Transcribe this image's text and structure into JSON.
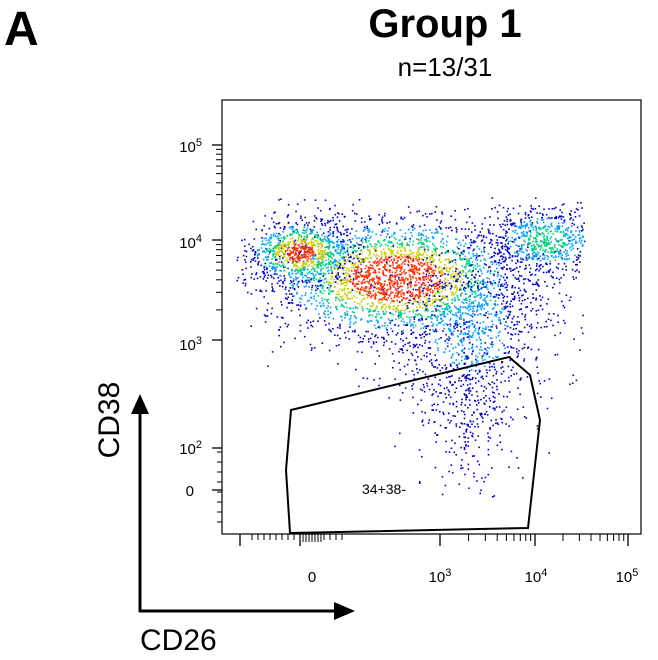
{
  "panel_label": "A",
  "chart_data": {
    "type": "scatter",
    "style": "flow-cytometry-density-dot-plot",
    "title": "Group 1",
    "subtitle": "n=13/31",
    "xlabel": "CD26",
    "ylabel": "CD38",
    "x_scale": "biexponential",
    "y_scale": "biexponential",
    "x_ticks": [
      {
        "base": "0",
        "exp": ""
      },
      {
        "base": "10",
        "exp": "3"
      },
      {
        "base": "10",
        "exp": "4"
      },
      {
        "base": "10",
        "exp": "5"
      }
    ],
    "y_ticks": [
      {
        "base": "10",
        "exp": "5"
      },
      {
        "base": "10",
        "exp": "4"
      },
      {
        "base": "10",
        "exp": "3"
      },
      {
        "base": "10",
        "exp": "2"
      },
      {
        "base": "0",
        "exp": ""
      }
    ],
    "density_colors": [
      "#0000cc",
      "#00a0ff",
      "#00d080",
      "#c8d000",
      "#ff3000"
    ],
    "gate": {
      "label": "34+38-",
      "outline_color": "#000000"
    },
    "grid": false,
    "legend": "none"
  }
}
